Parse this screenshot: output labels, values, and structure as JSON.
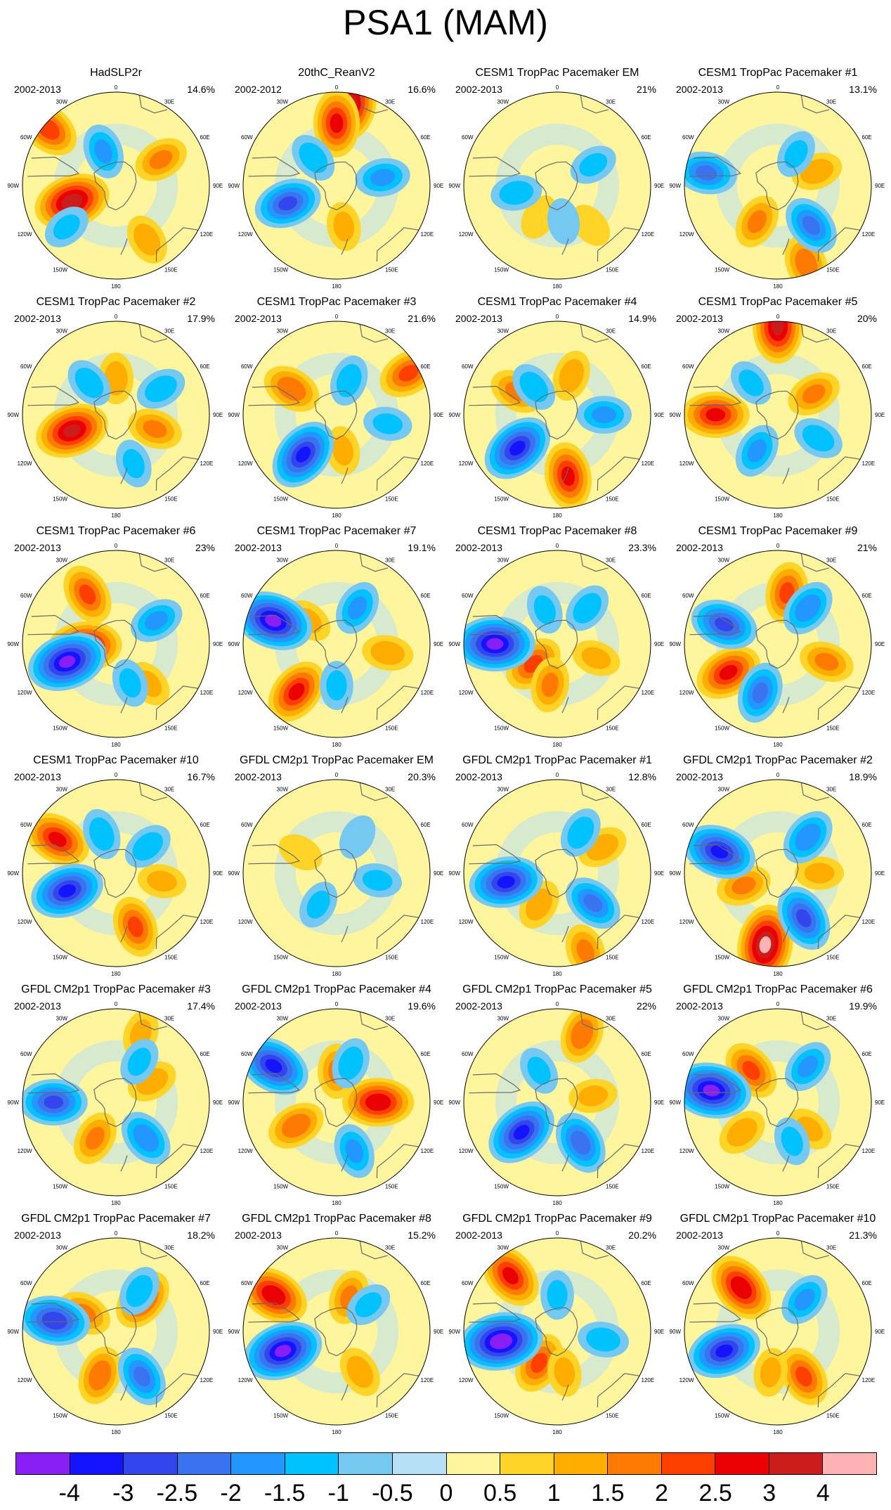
{
  "title": "PSA1 (MAM)",
  "axis_labels": {
    "top": "0",
    "bottom": "180",
    "left": "90W",
    "right": "90E",
    "upper_left": "60W",
    "upper_right": "60E",
    "lower_left": "120W",
    "lower_right": "120E",
    "top_left": "30W",
    "top_right": "30E",
    "bottom_left": "150W",
    "bottom_right": "150E"
  },
  "panels": [
    {
      "title": "HadSLP2r",
      "period": "2002-2013",
      "pct": "14.6%",
      "lows": [
        [
          -50,
          -5,
          2.2
        ],
        [
          -130,
          -28,
          -1.0
        ],
        [
          -20,
          -55,
          -1.5
        ]
      ],
      "highs": [
        [
          -110,
          -45,
          3.2
        ],
        [
          60,
          -40,
          1.5
        ],
        [
          150,
          -30,
          1.2
        ]
      ]
    },
    {
      "title": "20thC_ReanV2",
      "period": "2002-2012",
      "pct": "16.6%",
      "lows": [
        [
          -110,
          -40,
          -2.5
        ],
        [
          80,
          -45,
          -1.5
        ],
        [
          -40,
          -55,
          -1.2
        ]
      ],
      "highs": [
        [
          10,
          -10,
          3.0
        ],
        [
          0,
          -30,
          2.5
        ],
        [
          170,
          -50,
          1.0
        ]
      ]
    },
    {
      "title": "CESM1 TropPac Pacemaker EM",
      "period": "2002-2013",
      "pct": "21%",
      "lows": [
        [
          -100,
          -50,
          -1.2
        ],
        [
          60,
          -50,
          -1.0
        ],
        [
          170,
          -55,
          -0.8
        ]
      ],
      "highs": [
        [
          140,
          -40,
          0.8
        ],
        [
          -150,
          -55,
          0.8
        ]
      ]
    },
    {
      "title": "CESM1 TropPac Pacemaker #1",
      "period": "2002-2013",
      "pct": "13.1%",
      "lows": [
        [
          -80,
          -20,
          -2.0
        ],
        [
          140,
          -40,
          -2.0
        ],
        [
          30,
          -55,
          -1.0
        ]
      ],
      "highs": [
        [
          160,
          -10,
          1.8
        ],
        [
          -150,
          -50,
          1.5
        ],
        [
          70,
          -50,
          1.2
        ]
      ]
    },
    {
      "title": "CESM1 TropPac Pacemaker #2",
      "period": "2002-2013",
      "pct": "17.9%",
      "lows": [
        [
          -40,
          -50,
          -1.2
        ],
        [
          60,
          -40,
          -1.2
        ],
        [
          160,
          -40,
          -1.0
        ]
      ],
      "highs": [
        [
          -110,
          -45,
          3.0
        ],
        [
          110,
          -50,
          1.5
        ],
        [
          0,
          -55,
          1.2
        ]
      ]
    },
    {
      "title": "CESM1 TropPac Pacemaker #3",
      "period": "2002-2013",
      "pct": "21.6%",
      "lows": [
        [
          -140,
          -40,
          -3.0
        ],
        [
          20,
          -55,
          -1.2
        ],
        [
          100,
          -40,
          -1.0
        ]
      ],
      "highs": [
        [
          -60,
          -40,
          1.8
        ],
        [
          60,
          -10,
          2.0
        ],
        [
          170,
          -55,
          1.0
        ]
      ]
    },
    {
      "title": "CESM1 TropPac Pacemaker #4",
      "period": "2002-2013",
      "pct": "14.9%",
      "lows": [
        [
          -130,
          -40,
          -3.0
        ],
        [
          90,
          -45,
          -1.5
        ],
        [
          -40,
          -55,
          -1.2
        ]
      ],
      "highs": [
        [
          170,
          -30,
          2.5
        ],
        [
          -60,
          -45,
          1.5
        ],
        [
          20,
          -50,
          1.2
        ]
      ]
    },
    {
      "title": "CESM1 TropPac Pacemaker #5",
      "period": "2002-2013",
      "pct": "20%",
      "lows": [
        [
          -150,
          -50,
          -1.5
        ],
        [
          120,
          -45,
          -1.2
        ],
        [
          -40,
          -50,
          -1.0
        ]
      ],
      "highs": [
        [
          0,
          -5,
          3.0
        ],
        [
          -90,
          -30,
          2.5
        ],
        [
          60,
          -50,
          1.5
        ]
      ]
    },
    {
      "title": "CESM1 TropPac Pacemaker #6",
      "period": "2002-2013",
      "pct": "23%",
      "lows": [
        [
          -110,
          -40,
          -3.5
        ],
        [
          60,
          -45,
          -1.5
        ],
        [
          160,
          -50,
          -1.0
        ]
      ],
      "highs": [
        [
          -95,
          -60,
          3.0
        ],
        [
          -30,
          -35,
          2.0
        ],
        [
          140,
          -40,
          1.0
        ]
      ]
    },
    {
      "title": "CESM1 TropPac Pacemaker #7",
      "period": "2002-2013",
      "pct": "19.1%",
      "lows": [
        [
          -70,
          -25,
          -3.5
        ],
        [
          30,
          -50,
          -1.5
        ],
        [
          180,
          -50,
          -1.0
        ]
      ],
      "highs": [
        [
          -140,
          -30,
          2.5
        ],
        [
          100,
          -40,
          1.2
        ],
        [
          -50,
          -55,
          1.0
        ]
      ]
    },
    {
      "title": "CESM1 TropPac Pacemaker #8",
      "period": "2002-2013",
      "pct": "23.3%",
      "lows": [
        [
          -90,
          -30,
          -3.5
        ],
        [
          40,
          -45,
          -1.2
        ],
        [
          -20,
          -55,
          -1.0
        ]
      ],
      "highs": [
        [
          -130,
          -60,
          2.0
        ],
        [
          -170,
          -50,
          1.5
        ],
        [
          110,
          -50,
          1.0
        ]
      ]
    },
    {
      "title": "CESM1 TropPac Pacemaker #9",
      "period": "2002-2013",
      "pct": "21%",
      "lows": [
        [
          -70,
          -35,
          -2.5
        ],
        [
          -160,
          -40,
          -2.0
        ],
        [
          40,
          -45,
          -1.8
        ]
      ],
      "highs": [
        [
          -120,
          -35,
          2.5
        ],
        [
          10,
          -40,
          2.0
        ],
        [
          110,
          -40,
          1.5
        ]
      ]
    },
    {
      "title": "CESM1 TropPac Pacemaker #10",
      "period": "2002-2013",
      "pct": "16.7%",
      "lows": [
        [
          -110,
          -40,
          -3.0
        ],
        [
          50,
          -50,
          -1.2
        ],
        [
          -20,
          -50,
          -1.2
        ]
      ],
      "highs": [
        [
          -60,
          -25,
          2.5
        ],
        [
          160,
          -35,
          2.0
        ],
        [
          100,
          -45,
          1.0
        ]
      ]
    },
    {
      "title": "GFDL CM2p1 TropPac Pacemaker EM",
      "period": "2002-2013",
      "pct": "20.3%",
      "lows": [
        [
          -150,
          -55,
          -1.0
        ],
        [
          100,
          -50,
          -1.0
        ],
        [
          30,
          -50,
          -0.8
        ]
      ],
      "highs": [
        [
          -60,
          -50,
          0.8
        ]
      ]
    },
    {
      "title": "GFDL CM2p1 TropPac Pacemaker #1",
      "period": "2002-2013",
      "pct": "12.8%",
      "lows": [
        [
          -100,
          -40,
          -3.0
        ],
        [
          130,
          -45,
          -2.0
        ],
        [
          30,
          -45,
          -1.2
        ]
      ],
      "highs": [
        [
          160,
          -10,
          1.5
        ],
        [
          60,
          -40,
          1.2
        ],
        [
          -150,
          -55,
          1.2
        ]
      ]
    },
    {
      "title": "GFDL CM2p1 TropPac Pacemaker #2",
      "period": "2002-2013",
      "pct": "18.9%",
      "lows": [
        [
          -70,
          -30,
          -3.0
        ],
        [
          150,
          -40,
          -2.5
        ],
        [
          40,
          -45,
          -1.8
        ]
      ],
      "highs": [
        [
          -170,
          -20,
          3.5
        ],
        [
          -110,
          -55,
          1.5
        ],
        [
          90,
          -50,
          1.0
        ]
      ]
    },
    {
      "title": "GFDL CM2p1 TropPac Pacemaker #3",
      "period": "2002-2013",
      "pct": "17.4%",
      "lows": [
        [
          -90,
          -30,
          -2.5
        ],
        [
          140,
          -45,
          -1.8
        ],
        [
          30,
          -45,
          -1.0
        ]
      ],
      "highs": [
        [
          -150,
          -50,
          1.5
        ],
        [
          60,
          -50,
          1.2
        ],
        [
          20,
          -20,
          1.0
        ]
      ]
    },
    {
      "title": "GFDL CM2p1 TropPac Pacemaker #4",
      "period": "2002-2013",
      "pct": "19.6%",
      "lows": [
        [
          -60,
          -20,
          -3.0
        ],
        [
          160,
          -40,
          -1.5
        ],
        [
          20,
          -50,
          -1.2
        ]
      ],
      "highs": [
        [
          90,
          -50,
          2.8
        ],
        [
          -120,
          -45,
          1.8
        ],
        [
          0,
          -60,
          1.5
        ]
      ]
    },
    {
      "title": "GFDL CM2p1 TropPac Pacemaker #5",
      "period": "2002-2013",
      "pct": "22%",
      "lows": [
        [
          -130,
          -45,
          -3.0
        ],
        [
          150,
          -45,
          -2.2
        ],
        [
          -30,
          -55,
          -1.0
        ]
      ],
      "highs": [
        [
          20,
          -20,
          1.8
        ],
        [
          80,
          -55,
          1.0
        ]
      ]
    },
    {
      "title": "GFDL CM2p1 TropPac Pacemaker #6",
      "period": "2002-2013",
      "pct": "19.9%",
      "lows": [
        [
          -80,
          -25,
          -3.5
        ],
        [
          40,
          -45,
          -1.5
        ],
        [
          160,
          -50,
          -1.0
        ]
      ],
      "highs": [
        [
          -40,
          -50,
          2.0
        ],
        [
          -130,
          -45,
          1.2
        ],
        [
          130,
          -50,
          1.0
        ]
      ]
    },
    {
      "title": "GFDL CM2p1 TropPac Pacemaker #7",
      "period": "2002-2013",
      "pct": "18.2%",
      "lows": [
        [
          -80,
          -30,
          -2.8
        ],
        [
          150,
          -40,
          -2.0
        ],
        [
          30,
          -45,
          -1.2
        ]
      ],
      "highs": [
        [
          40,
          -50,
          2.2
        ],
        [
          -160,
          -45,
          1.8
        ],
        [
          -60,
          -55,
          1.5
        ]
      ]
    },
    {
      "title": "GFDL CM2p1 TropPac Pacemaker #8",
      "period": "2002-2013",
      "pct": "15.2%",
      "lows": [
        [
          -110,
          -35,
          -3.5
        ],
        [
          50,
          -50,
          -1.0
        ]
      ],
      "highs": [
        [
          -60,
          -20,
          2.8
        ],
        [
          20,
          -55,
          1.5
        ],
        [
          150,
          -45,
          1.2
        ]
      ]
    },
    {
      "title": "GFDL CM2p1 TropPac Pacemaker #9",
      "period": "2002-2013",
      "pct": "20.2%",
      "lows": [
        [
          -100,
          -35,
          -3.8
        ],
        [
          100,
          -45,
          -1.2
        ],
        [
          0,
          -55,
          -1.0
        ]
      ],
      "highs": [
        [
          -150,
          -55,
          2.0
        ],
        [
          -40,
          -20,
          2.5
        ],
        [
          170,
          -50,
          1.0
        ]
      ]
    },
    {
      "title": "GFDL CM2p1 TropPac Pacemaker #10",
      "period": "2002-2013",
      "pct": "21.3%",
      "lows": [
        [
          -110,
          -35,
          -3.0
        ],
        [
          40,
          -50,
          -1.5
        ]
      ],
      "highs": [
        [
          -40,
          -35,
          2.8
        ],
        [
          150,
          -40,
          2.0
        ],
        [
          -170,
          -50,
          1.0
        ]
      ]
    }
  ],
  "colorbar": {
    "colors": [
      "#8a1ef7",
      "#1414ff",
      "#3346ee",
      "#3a73ee",
      "#2297ff",
      "#00c2ff",
      "#74c8f2",
      "#b6e0f6",
      "#fff59c",
      "#ffd426",
      "#ffad00",
      "#ff7a00",
      "#ff3f00",
      "#ea0000",
      "#cc1c1c",
      "#ffb3b3"
    ],
    "ticks": [
      "-4",
      "-3",
      "-2.5",
      "-2",
      "-1.5",
      "-1",
      "-0.5",
      "0",
      "0.5",
      "1",
      "1.5",
      "2",
      "2.5",
      "3",
      "4"
    ]
  }
}
